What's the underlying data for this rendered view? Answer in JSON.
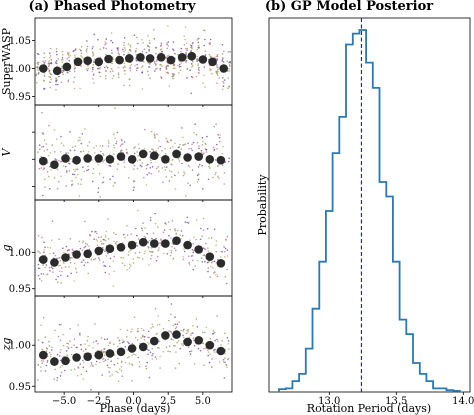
{
  "chart_data": [
    {
      "type": "scatter",
      "title": "(a) Phased Photometry",
      "xlabel": "Phase (days)",
      "xlim": [
        -7.1,
        7.1
      ],
      "xticks": [
        -5.0,
        -2.5,
        0.0,
        2.5,
        5.0
      ],
      "xtick_labels": [
        "−5.0",
        "−2.5",
        "0.0",
        "2.5",
        "5.0"
      ],
      "scatter_colors": [
        "#6a3d9a",
        "#b8a060",
        "#b56a8c",
        "#8a9a50"
      ],
      "binned_color": "#2b2b2b",
      "panels": [
        {
          "ylabel": "SuperWASP",
          "ylim": [
            0.935,
            1.09
          ],
          "yticks": [
            0.95,
            1.0,
            1.05
          ],
          "ytick_labels": [
            "0.95",
            "1.00",
            "1.05"
          ],
          "noise": 0.022,
          "n_points": 620,
          "binned_x": [
            -6.5,
            -5.5,
            -4.8,
            -4.0,
            -3.3,
            -2.5,
            -1.8,
            -1.0,
            -0.3,
            0.5,
            1.2,
            2.0,
            2.7,
            3.5,
            4.2,
            5.0,
            5.7,
            6.5
          ],
          "binned_y": [
            1.0,
            0.996,
            1.003,
            1.012,
            1.014,
            1.012,
            1.017,
            1.015,
            1.018,
            1.02,
            1.018,
            1.02,
            1.015,
            1.02,
            1.022,
            1.016,
            1.012,
            1.0
          ]
        },
        {
          "ylabel": "V",
          "ylim": [
            0.955,
            1.06
          ],
          "yticks": [
            0.97,
            1.0,
            1.03
          ],
          "ytick_labels": [
            "",
            "",
            ""
          ],
          "noise": 0.03,
          "n_points": 380,
          "binned_x": [
            -6.5,
            -5.7,
            -4.9,
            -4.1,
            -3.3,
            -2.5,
            -1.7,
            -0.9,
            -0.1,
            0.7,
            1.5,
            2.3,
            3.1,
            3.9,
            4.7,
            5.5,
            6.3
          ],
          "binned_y": [
            0.998,
            0.994,
            1.001,
            0.999,
            1.001,
            1.001,
            1.0,
            1.003,
            1.0,
            1.006,
            1.004,
            1.0,
            1.006,
            1.002,
            1.003,
            1.0,
            0.999
          ]
        },
        {
          "ylabel": "g",
          "ylim": [
            0.94,
            1.072
          ],
          "yticks": [
            0.95,
            1.0
          ],
          "ytick_labels": [
            "0.95",
            "1.00"
          ],
          "noise": 0.03,
          "n_points": 420,
          "binned_x": [
            -6.5,
            -5.7,
            -4.9,
            -4.1,
            -3.3,
            -2.5,
            -1.7,
            -0.9,
            -0.1,
            0.7,
            1.5,
            2.3,
            3.1,
            3.9,
            4.7,
            5.5,
            6.3
          ],
          "binned_y": [
            0.99,
            0.986,
            0.993,
            0.997,
            0.998,
            1.002,
            1.005,
            1.007,
            1.01,
            1.014,
            1.012,
            1.012,
            1.016,
            1.01,
            1.004,
            0.994,
            0.985
          ]
        },
        {
          "ylabel": "zg",
          "ylim": [
            0.943,
            1.06
          ],
          "yticks": [
            0.95,
            1.0
          ],
          "ytick_labels": [
            "0.95",
            "1.00"
          ],
          "noise": 0.028,
          "n_points": 420,
          "binned_x": [
            -6.5,
            -5.7,
            -4.9,
            -4.1,
            -3.3,
            -2.5,
            -1.7,
            -0.9,
            -0.1,
            0.7,
            1.5,
            2.3,
            3.1,
            3.9,
            4.7,
            5.5,
            6.3
          ],
          "binned_y": [
            0.988,
            0.98,
            0.981,
            0.985,
            0.986,
            0.988,
            0.99,
            0.992,
            0.996,
            0.998,
            1.005,
            1.012,
            1.013,
            1.004,
            1.006,
            1.0,
            0.993
          ]
        }
      ]
    },
    {
      "type": "histogram",
      "title": "(b) GP Model Posterior",
      "xlabel": "Rotation Period (days)",
      "ylabel": "Probability",
      "xlim": [
        12.55,
        14.05
      ],
      "xticks": [
        13.0,
        13.5,
        14.0
      ],
      "xtick_labels": [
        "13.0",
        "13.5",
        "14.0"
      ],
      "ylim": [
        0,
        1
      ],
      "line_color": "#2a78b5",
      "vline_x": 13.24,
      "vline_color": "#2e2a8a",
      "bin_edges": [
        12.625,
        12.675,
        12.725,
        12.775,
        12.825,
        12.875,
        12.925,
        12.975,
        13.025,
        13.075,
        13.125,
        13.175,
        13.225,
        13.275,
        13.325,
        13.375,
        13.425,
        13.475,
        13.525,
        13.575,
        13.625,
        13.675,
        13.725,
        13.775,
        13.825,
        13.875,
        13.925,
        13.975
      ],
      "bin_values": [
        0.008,
        0.01,
        0.03,
        0.05,
        0.12,
        0.23,
        0.36,
        0.5,
        0.66,
        0.76,
        0.96,
        0.99,
        1.0,
        0.91,
        0.84,
        0.58,
        0.54,
        0.36,
        0.2,
        0.16,
        0.08,
        0.05,
        0.03,
        0.01,
        0.01,
        0.005,
        0.003
      ]
    }
  ]
}
